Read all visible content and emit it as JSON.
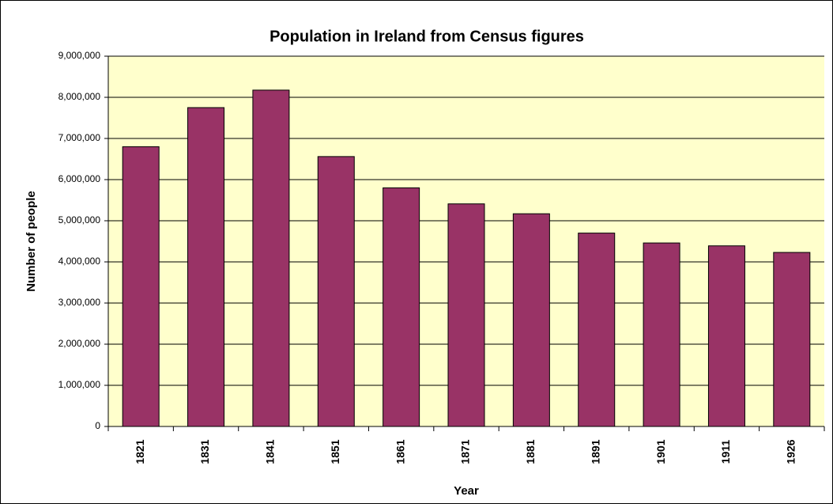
{
  "chart_data": {
    "type": "bar",
    "title": "Population in Ireland from Census figures",
    "x_label": "Year",
    "y_label": "Number of people",
    "categories": [
      "1821",
      "1831",
      "1841",
      "1851",
      "1861",
      "1871",
      "1881",
      "1891",
      "1901",
      "1911",
      "1926"
    ],
    "values": [
      6800000,
      7750000,
      8175000,
      6560000,
      5800000,
      5410000,
      5170000,
      4700000,
      4460000,
      4390000,
      4230000
    ],
    "color": "#993366",
    "ylim": [
      0,
      9000000
    ],
    "yticks": [
      0,
      {
        "value": 1000000,
        "label": "1,000,000"
      },
      {
        "value": 2000000,
        "label": "2,000,000"
      },
      {
        "value": 3000000,
        "label": "3,000,000"
      },
      {
        "value": 4000000,
        "label": "4,000,000"
      },
      {
        "value": 5000000,
        "label": "5,000,000"
      },
      {
        "value": 6000000,
        "label": "6,000,000"
      },
      {
        "value": 7000000,
        "label": "7,000,000"
      },
      {
        "value": 8000000,
        "label": "8,000,000"
      },
      {
        "value": 9000000,
        "label": "9,000,000"
      }
    ],
    "grid": true
  }
}
